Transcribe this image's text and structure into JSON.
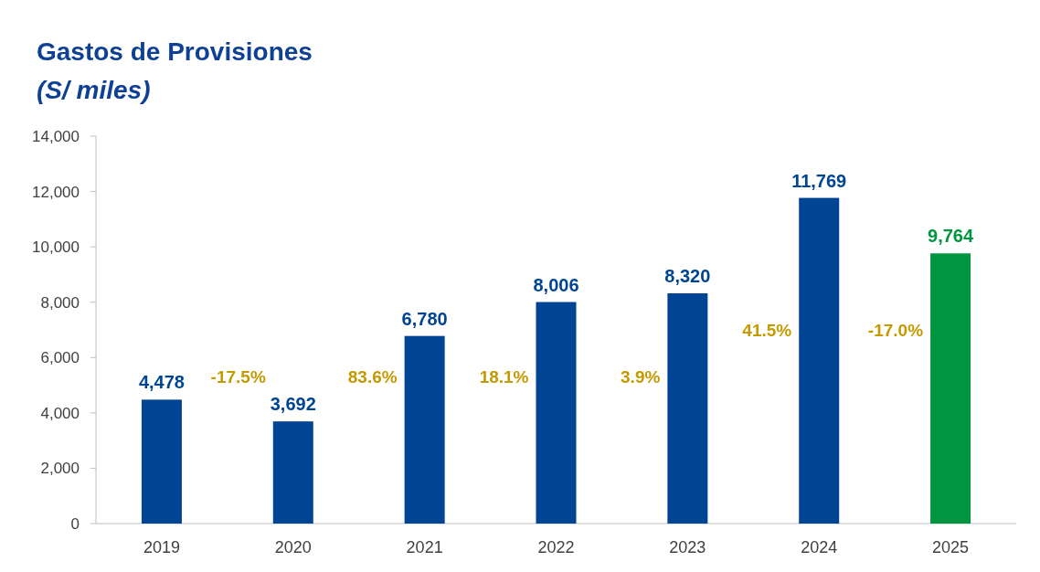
{
  "chart_data": {
    "type": "bar",
    "title": "Gastos de Provisiones",
    "subtitle": "(S/ miles)",
    "categories": [
      "2019",
      "2020",
      "2021",
      "2022",
      "2023",
      "2024",
      "2025"
    ],
    "values": [
      4478,
      3692,
      6780,
      8006,
      8320,
      11769,
      9764
    ],
    "colors": [
      "#004494",
      "#004494",
      "#004494",
      "#004494",
      "#004494",
      "#004494",
      "#009640"
    ],
    "value_labels": [
      "4,478",
      "3,692",
      "6,780",
      "8,006",
      "8,320",
      "11,769",
      "9,764"
    ],
    "ylim": [
      0,
      14000
    ],
    "yticks": [
      0,
      {
        "value": 2000,
        "label": "2,000"
      },
      {
        "value": 4000,
        "label": "4,000"
      },
      {
        "value": 6000,
        "label": "6,000"
      },
      {
        "value": 8000,
        "label": "8,000"
      },
      {
        "value": 10000,
        "label": "10,000"
      },
      {
        "value": 12000,
        "label": "12,000"
      },
      {
        "value": 14000,
        "label": "14,000"
      }
    ],
    "annotations": [
      "-17.5%",
      "83.6%",
      "18.1%",
      "3.9%",
      "41.5%",
      "-17.0%"
    ],
    "grid": false
  }
}
